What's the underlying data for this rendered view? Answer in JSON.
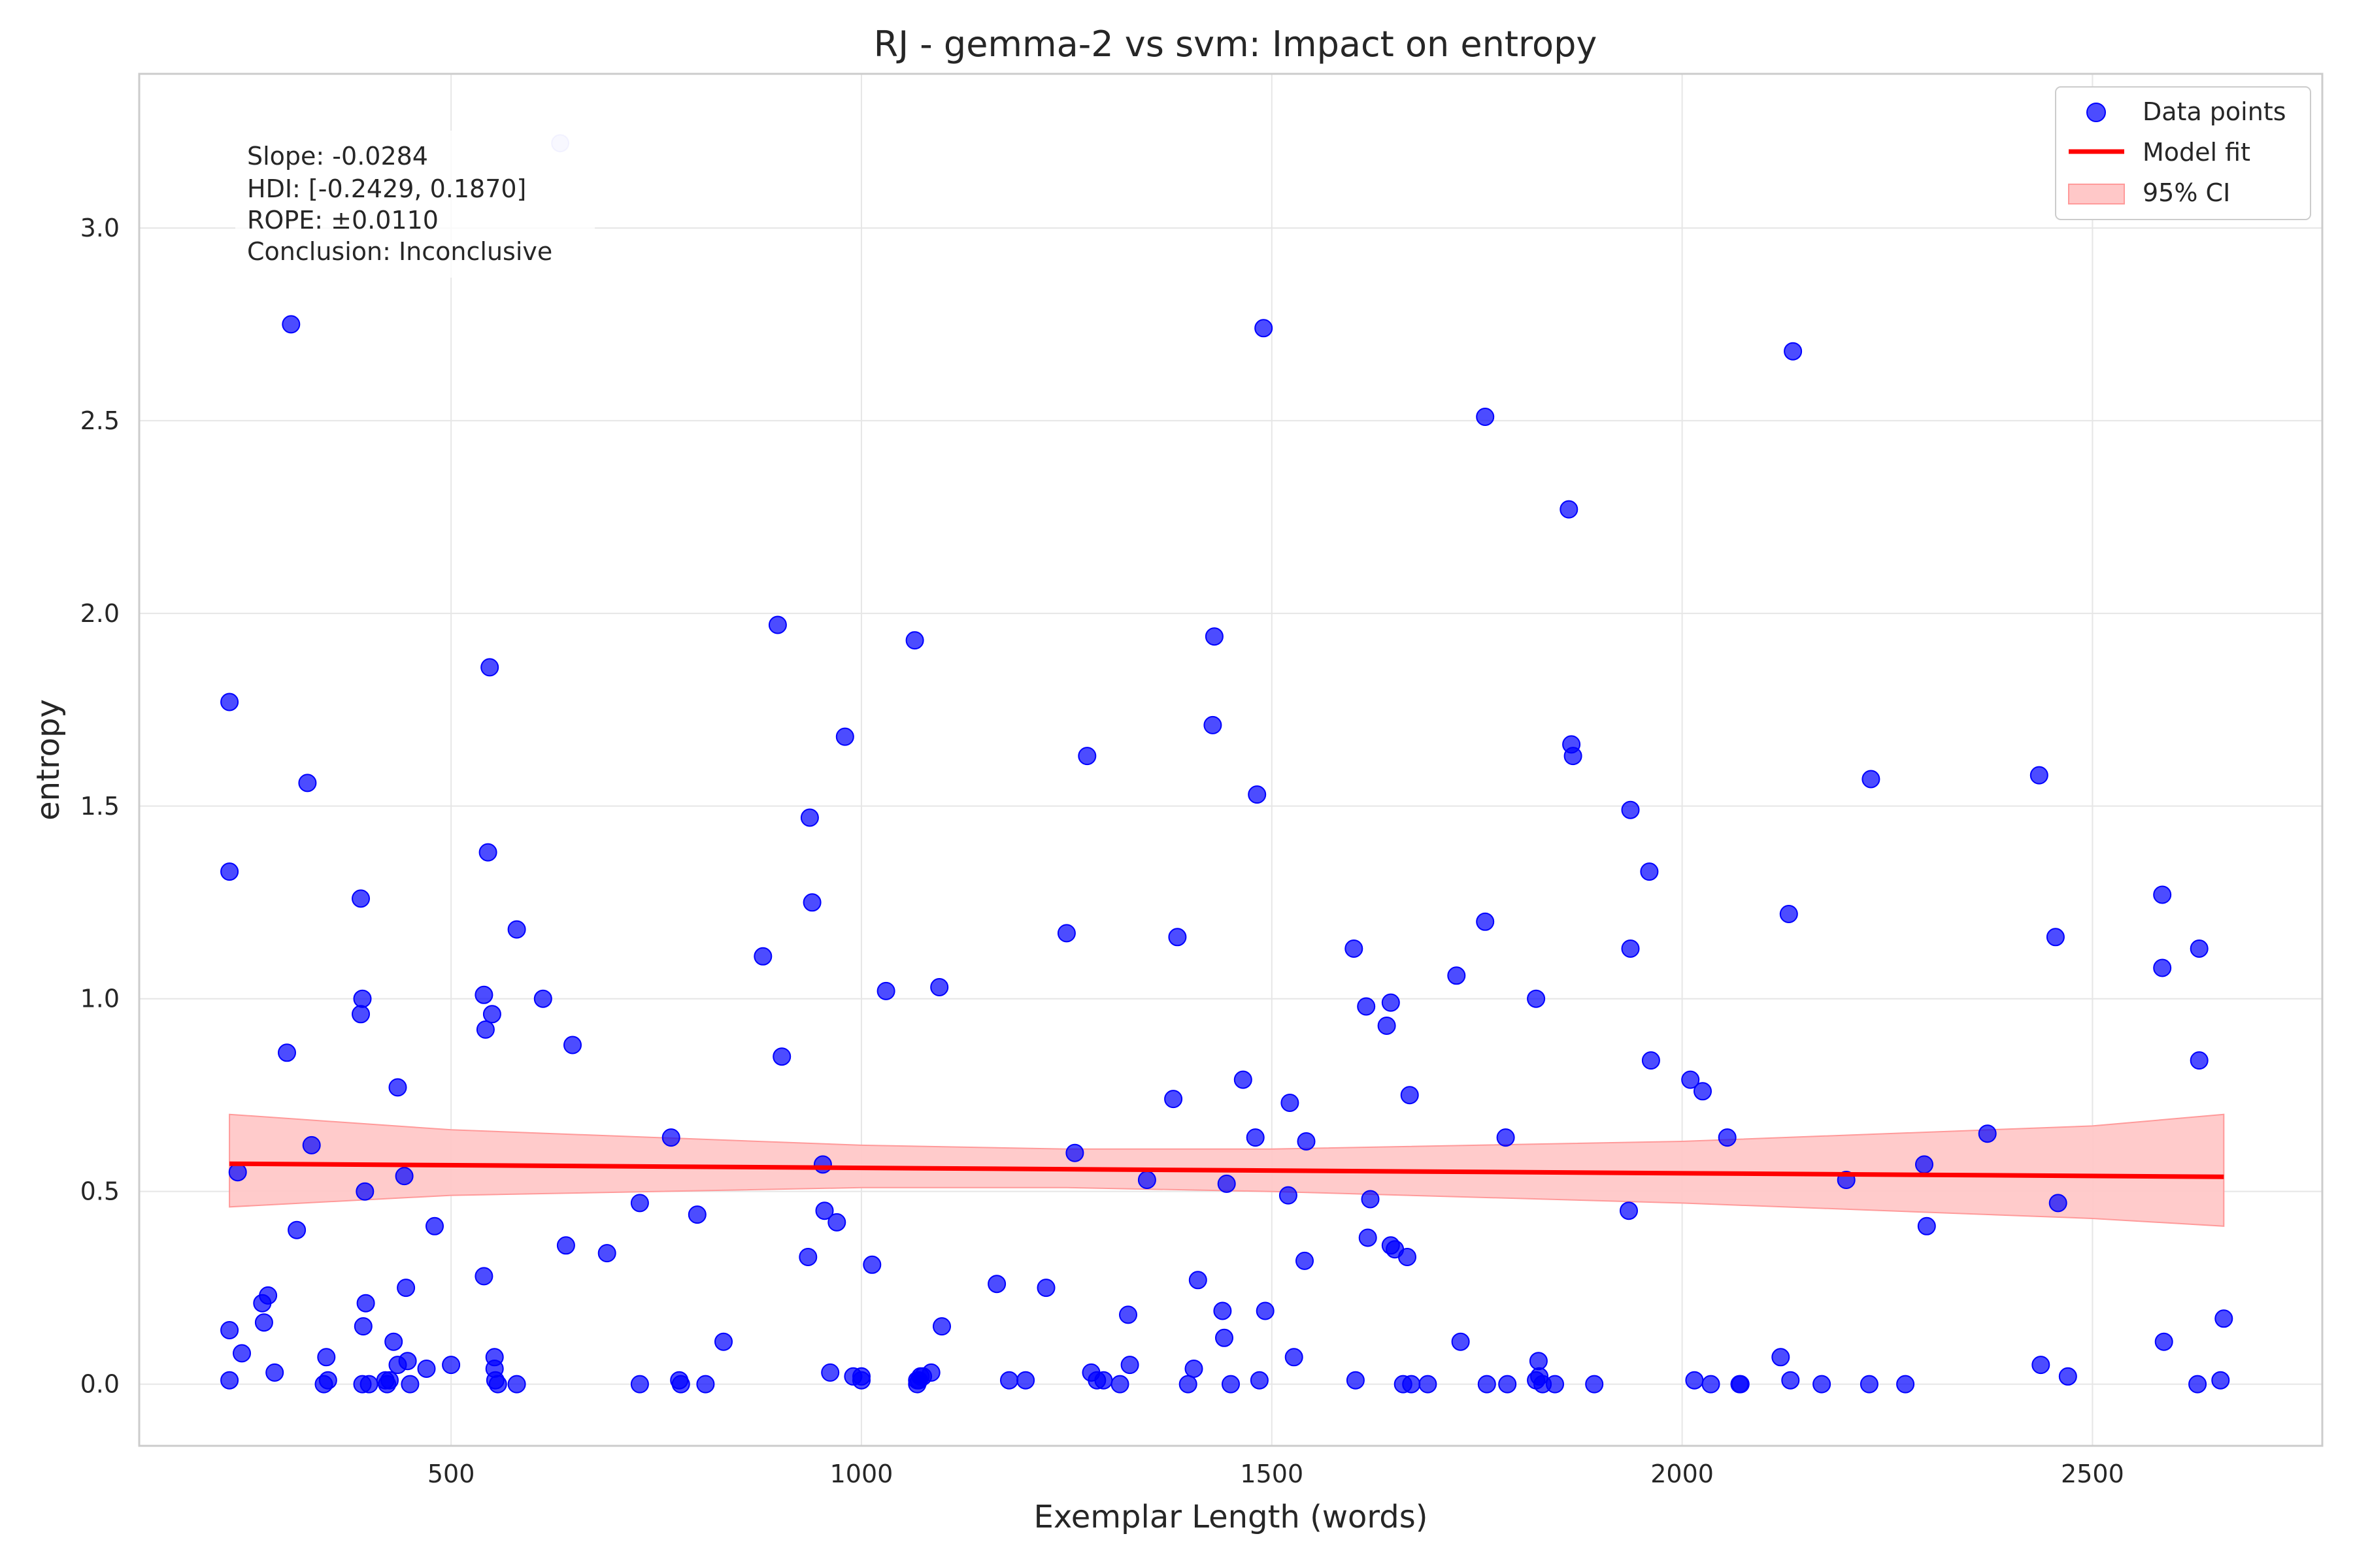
{
  "chart_data": {
    "type": "scatter",
    "title": "RJ - gemma-2 vs svm: Impact on entropy",
    "xlabel": "Exemplar Length (words)",
    "ylabel": "entropy",
    "xlim": [
      120,
      2780
    ],
    "ylim": [
      -0.16,
      3.4
    ],
    "xticks": [
      500,
      1000,
      1500,
      2000,
      2500
    ],
    "xtick_labels": [
      "500",
      "1000",
      "1500",
      "2000",
      "2500"
    ],
    "yticks": [
      0.0,
      0.5,
      1.0,
      1.5,
      2.0,
      2.5,
      3.0
    ],
    "ytick_labels": [
      "0.0",
      "0.5",
      "1.0",
      "1.5",
      "2.0",
      "2.5",
      "3.0"
    ],
    "grid": true,
    "legend": {
      "position": "top-right",
      "entries": [
        "Data points",
        "Model fit",
        "95% CI"
      ]
    },
    "annotation": [
      "Slope: -0.0284",
      "HDI: [-0.2429, 0.1870]",
      "ROPE: ±0.0110",
      "Conclusion: Inconclusive"
    ],
    "colors": {
      "points": "#0000ff",
      "fit": "#ff0000",
      "ci_fill": "#ffc8c8",
      "ci_edge": "#ff9a9a"
    },
    "series": [
      {
        "name": "Data points",
        "type": "scatter",
        "x": [
          230,
          230,
          230,
          230,
          240,
          245,
          270,
          272,
          277,
          285,
          300,
          305,
          312,
          325,
          330,
          345,
          348,
          350,
          390,
          390,
          392,
          392,
          393,
          395,
          396,
          400,
          420,
          422,
          425,
          430,
          435,
          435,
          443,
          445,
          447,
          450,
          470,
          480,
          500,
          540,
          540,
          542,
          545,
          547,
          550,
          553,
          553,
          554,
          557,
          580,
          580,
          612,
          640,
          648,
          690,
          730,
          730,
          768,
          778,
          780,
          800,
          810,
          832,
          880,
          898,
          903,
          935,
          937,
          940,
          953,
          955,
          962,
          970,
          980,
          990,
          1000,
          1000,
          1013,
          1030,
          1065,
          1068,
          1068,
          1070,
          1072,
          1075,
          1085,
          1095,
          1098,
          1165,
          1180,
          1200,
          1225,
          1250,
          1260,
          1275,
          1280,
          1287,
          1295,
          1315,
          1325,
          1327,
          1348,
          1380,
          1385,
          1398,
          1405,
          1410,
          1428,
          1430,
          1440,
          1442,
          1445,
          1450,
          1465,
          1480,
          1482,
          1485,
          1490,
          1492,
          1520,
          1522,
          1527,
          1540,
          1542,
          1600,
          1602,
          1615,
          1617,
          1620,
          1640,
          1645,
          1645,
          1650,
          1660,
          1665,
          1668,
          1670,
          1690,
          1725,
          1730,
          1760,
          1760,
          1762,
          1785,
          1787,
          1822,
          1822,
          1825,
          1826,
          1830,
          1845,
          1862,
          1865,
          1867,
          1893,
          1935,
          1937,
          1937,
          1960,
          1962,
          2010,
          2015,
          2025,
          2035,
          2055,
          2070,
          2071,
          2120,
          2130,
          2132,
          2135,
          2170,
          2200,
          2228,
          2230,
          2272,
          2295,
          2298,
          2372,
          2435,
          2437,
          2455,
          2458,
          2470,
          2585,
          2585,
          2587,
          2628,
          2630,
          2630,
          2656,
          2660
        ],
        "y": [
          1.77,
          1.33,
          0.14,
          0.01,
          0.55,
          0.08,
          0.21,
          0.16,
          0.23,
          0.03,
          0.86,
          2.75,
          0.4,
          1.56,
          0.62,
          0.0,
          0.07,
          0.01,
          1.26,
          0.96,
          1.0,
          0.0,
          0.15,
          0.5,
          0.21,
          0.0,
          0.01,
          0.0,
          0.01,
          0.11,
          0.77,
          0.05,
          0.54,
          0.25,
          0.06,
          0.0,
          0.04,
          0.41,
          0.05,
          0.28,
          1.01,
          0.92,
          1.38,
          1.86,
          0.96,
          0.07,
          0.04,
          0.01,
          0.0,
          1.18,
          0.0,
          1.0,
          0.36,
          0.88,
          0.34,
          0.47,
          0.0,
          0.64,
          0.01,
          0.0,
          0.44,
          0.0,
          0.11,
          1.11,
          1.97,
          0.85,
          0.33,
          1.47,
          1.25,
          0.57,
          0.45,
          0.03,
          0.42,
          1.68,
          0.02,
          0.01,
          0.02,
          0.31,
          1.02,
          1.93,
          0.0,
          0.01,
          0.01,
          0.02,
          0.02,
          0.03,
          1.03,
          0.15,
          0.26,
          0.01,
          0.01,
          0.25,
          1.17,
          0.6,
          1.63,
          0.03,
          0.01,
          0.01,
          0.0,
          0.18,
          0.05,
          0.53,
          0.74,
          1.16,
          0.0,
          0.04,
          0.27,
          1.71,
          1.94,
          0.19,
          0.12,
          0.52,
          0.0,
          0.79,
          0.64,
          1.53,
          0.01,
          2.74,
          0.19,
          0.49,
          0.73,
          0.07,
          0.32,
          0.63,
          1.13,
          0.01,
          0.98,
          0.38,
          0.48,
          0.93,
          0.99,
          0.36,
          0.35,
          0.0,
          0.33,
          0.75,
          0.0,
          0.0,
          1.06,
          0.11,
          1.2,
          2.51,
          0.0,
          0.64,
          0.0,
          0.01,
          1.0,
          0.06,
          0.02,
          0.0,
          0.0,
          2.27,
          1.66,
          1.63,
          0.0,
          0.45,
          1.49,
          1.13,
          1.33,
          0.84,
          0.79,
          0.01,
          0.76,
          0.0,
          0.64,
          0.0,
          0.0,
          0.07,
          1.22,
          0.01,
          2.68,
          0.0,
          0.53,
          0.0,
          1.57,
          0.0,
          0.57,
          0.41,
          0.65,
          1.58,
          0.05,
          1.16,
          0.47,
          0.02,
          1.27,
          1.08,
          0.11,
          0.0,
          1.13,
          0.84,
          0.01,
          0.17
        ],
        "faded_point": {
          "x": 633,
          "y": 3.22
        }
      },
      {
        "name": "Model fit",
        "type": "line",
        "x": [
          230,
          2660
        ],
        "y": [
          0.572,
          0.538
        ]
      },
      {
        "name": "95% CI",
        "type": "area",
        "x": [
          230,
          500,
          1000,
          1250,
          1500,
          2000,
          2500,
          2660
        ],
        "lower": [
          0.46,
          0.49,
          0.51,
          0.51,
          0.5,
          0.47,
          0.43,
          0.41
        ],
        "upper": [
          0.7,
          0.66,
          0.62,
          0.61,
          0.61,
          0.63,
          0.67,
          0.7
        ]
      }
    ]
  }
}
